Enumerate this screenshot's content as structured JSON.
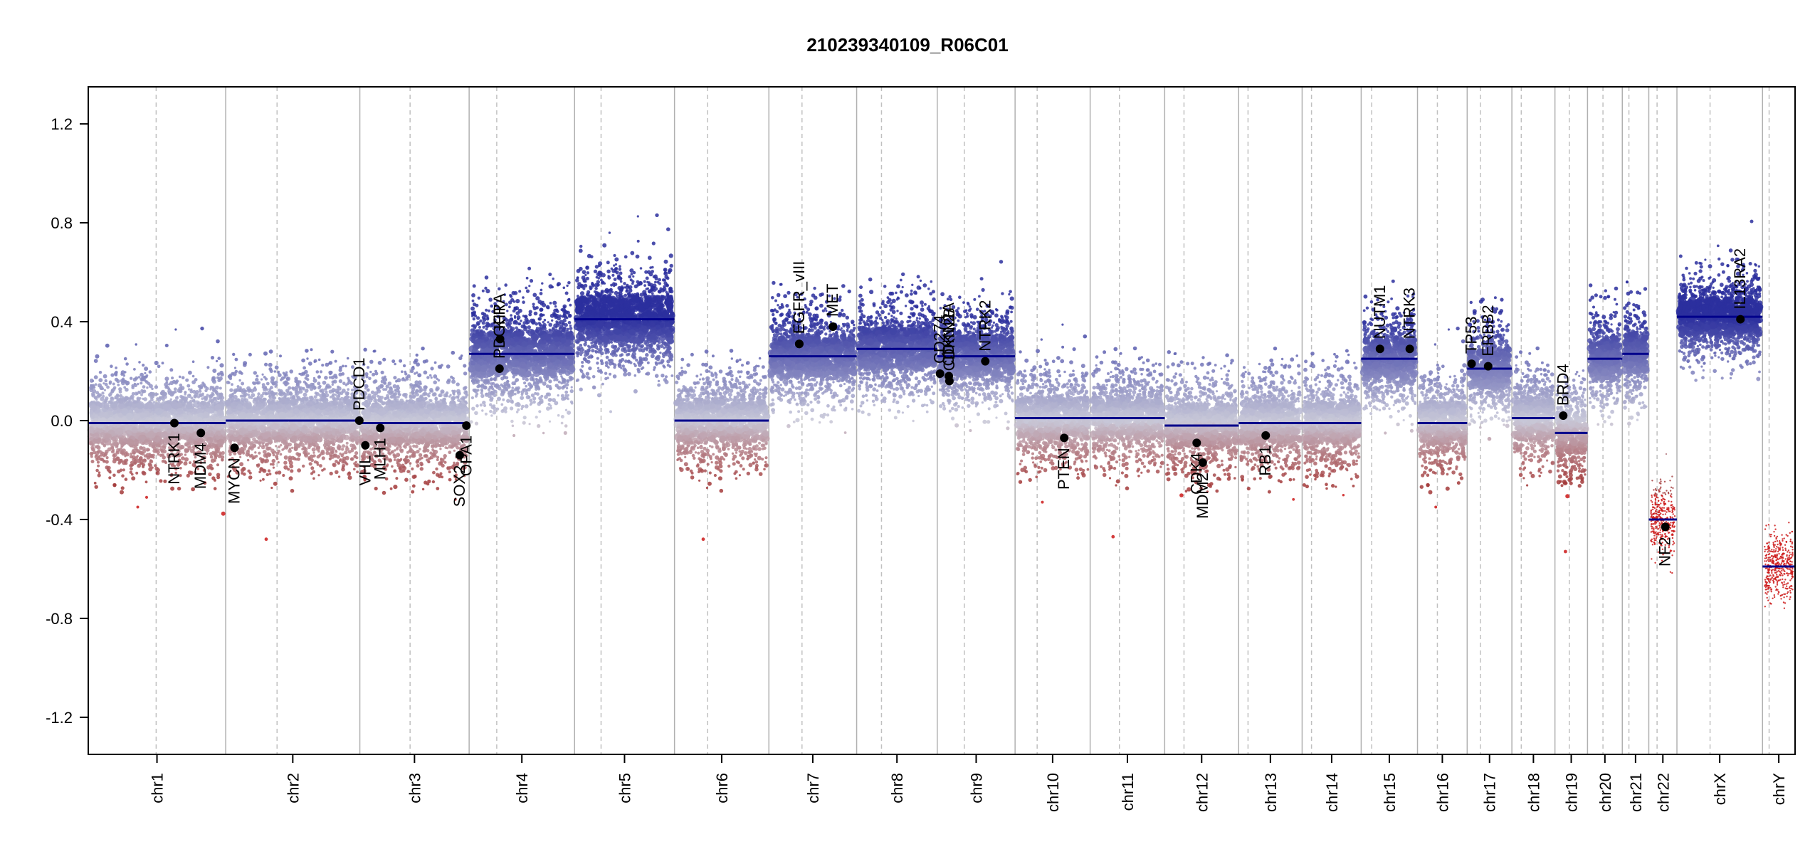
{
  "chart_data": {
    "type": "scatter",
    "title": "210239340109_R06C01",
    "xlabel": "",
    "ylabel": "",
    "ylim": [
      -1.35,
      1.35
    ],
    "grid": false,
    "y_ticks": [
      -1.2,
      -0.8,
      -0.4,
      0.0,
      0.4,
      0.8,
      1.2
    ],
    "y_tick_labels": [
      "-1.2",
      "-0.8",
      "-0.4",
      "0.0",
      "0.4",
      "0.8",
      "1.2"
    ],
    "colors": {
      "segment": "#00008b",
      "gain": "#2b2f9e",
      "neutral": "#c8c8d8",
      "loss": "#a33a3a",
      "deep_loss": "#cc1a1a",
      "chr_border": "#b0b0b0",
      "centromere": "#c0c0c0",
      "gene_point": "#000000"
    },
    "chromosomes": [
      {
        "name": "chr1",
        "label": "chr1",
        "size": 249,
        "centromere": 123,
        "segment_value": -0.01,
        "spread": 0.1
      },
      {
        "name": "chr2",
        "label": "chr2",
        "size": 243,
        "centromere": 93,
        "segment_value": 0.0,
        "spread": 0.1
      },
      {
        "name": "chr3",
        "label": "chr3",
        "size": 198,
        "centromere": 91,
        "segment_value": -0.01,
        "spread": 0.1
      },
      {
        "name": "chr4",
        "label": "chr4",
        "size": 191,
        "centromere": 50,
        "segment_value": 0.27,
        "spread": 0.11
      },
      {
        "name": "chr5",
        "label": "chr5",
        "size": 181,
        "centromere": 48,
        "segment_value": 0.41,
        "spread": 0.11
      },
      {
        "name": "chr6",
        "label": "chr6",
        "size": 171,
        "centromere": 60,
        "segment_value": 0.0,
        "spread": 0.1
      },
      {
        "name": "chr7",
        "label": "chr7",
        "size": 159,
        "centromere": 60,
        "segment_value": 0.26,
        "spread": 0.1
      },
      {
        "name": "chr8",
        "label": "chr8",
        "size": 146,
        "centromere": 45,
        "segment_value": 0.29,
        "spread": 0.1
      },
      {
        "name": "chr9",
        "label": "chr9",
        "size": 141,
        "centromere": 49,
        "segment_value": 0.26,
        "spread": 0.1
      },
      {
        "name": "chr10",
        "label": "chr10",
        "size": 136,
        "centromere": 40,
        "segment_value": 0.01,
        "spread": 0.1
      },
      {
        "name": "chr11",
        "label": "chr11",
        "size": 135,
        "centromere": 53,
        "segment_value": 0.01,
        "spread": 0.1
      },
      {
        "name": "chr12",
        "label": "chr12",
        "size": 134,
        "centromere": 35,
        "segment_value": -0.02,
        "spread": 0.1
      },
      {
        "name": "chr13",
        "label": "chr13",
        "size": 115,
        "centromere": 17,
        "segment_value": -0.01,
        "spread": 0.1
      },
      {
        "name": "chr14",
        "label": "chr14",
        "size": 107,
        "centromere": 17,
        "segment_value": -0.01,
        "spread": 0.1
      },
      {
        "name": "chr15",
        "label": "chr15",
        "size": 102,
        "centromere": 19,
        "segment_value": 0.25,
        "spread": 0.1
      },
      {
        "name": "chr16",
        "label": "chr16",
        "size": 90,
        "centromere": 36,
        "segment_value": -0.01,
        "spread": 0.1
      },
      {
        "name": "chr17",
        "label": "chr17",
        "size": 81,
        "centromere": 24,
        "segment_value": 0.21,
        "spread": 0.1
      },
      {
        "name": "chr18",
        "label": "chr18",
        "size": 78,
        "centromere": 17,
        "segment_value": 0.01,
        "spread": 0.1
      },
      {
        "name": "chr19",
        "label": "chr19",
        "size": 59,
        "centromere": 26,
        "segment_value": -0.05,
        "spread": 0.1
      },
      {
        "name": "chr20",
        "label": "chr20",
        "size": 63,
        "centromere": 28,
        "segment_value": 0.25,
        "spread": 0.1
      },
      {
        "name": "chr21",
        "label": "chr21",
        "size": 48,
        "centromere": 12,
        "segment_value": 0.27,
        "spread": 0.1
      },
      {
        "name": "chr22",
        "label": "chr22",
        "size": 51,
        "centromere": 15,
        "segment_value": -0.4,
        "spread": 0.1
      },
      {
        "name": "chrX",
        "label": "chrX",
        "size": 155,
        "centromere": 60,
        "segment_value": 0.42,
        "spread": 0.09
      },
      {
        "name": "chrY",
        "label": "chrY",
        "size": 59,
        "centromere": 12,
        "segment_value": -0.59,
        "spread": 0.1
      }
    ],
    "genes": [
      {
        "name": "NTRK1",
        "chrom": "chr1",
        "pos": 156,
        "value": -0.01,
        "label_side": "below"
      },
      {
        "name": "MDM4",
        "chrom": "chr1",
        "pos": 204,
        "value": -0.05,
        "label_side": "below"
      },
      {
        "name": "MYCN",
        "chrom": "chr2",
        "pos": 16,
        "value": -0.11,
        "label_side": "below"
      },
      {
        "name": "PDCD1",
        "chrom": "chr2",
        "pos": 242,
        "value": 0.0,
        "label_side": "above"
      },
      {
        "name": "VHL",
        "chrom": "chr3",
        "pos": 10,
        "value": -0.1,
        "label_side": "below"
      },
      {
        "name": "MLH1",
        "chrom": "chr3",
        "pos": 37,
        "value": -0.03,
        "label_side": "below"
      },
      {
        "name": "SOX2",
        "chrom": "chr3",
        "pos": 181,
        "value": -0.14,
        "label_side": "below"
      },
      {
        "name": "OPA1",
        "chrom": "chr3",
        "pos": 193,
        "value": -0.02,
        "label_side": "below"
      },
      {
        "name": "PDGFRA",
        "chrom": "chr4",
        "pos": 55,
        "value": 0.21,
        "label_side": "above"
      },
      {
        "name": "KIT",
        "chrom": "chr4",
        "pos": 56,
        "value": 0.33,
        "label_side": "above"
      },
      {
        "name": "EGFR_vIII",
        "chrom": "chr7",
        "pos": 55,
        "value": 0.31,
        "label_side": "above"
      },
      {
        "name": "EGFR",
        "chrom": "chr7",
        "pos": 55,
        "value": 0.31,
        "label_side": "above"
      },
      {
        "name": "MET",
        "chrom": "chr7",
        "pos": 116,
        "value": 0.38,
        "label_side": "above"
      },
      {
        "name": "CD274",
        "chrom": "chr9",
        "pos": 5,
        "value": 0.19,
        "label_side": "above"
      },
      {
        "name": "CDKN2A",
        "chrom": "chr9",
        "pos": 21,
        "value": 0.18,
        "label_side": "above"
      },
      {
        "name": "CDKN2B",
        "chrom": "chr9",
        "pos": 22,
        "value": 0.16,
        "label_side": "above"
      },
      {
        "name": "NTRK2",
        "chrom": "chr9",
        "pos": 87,
        "value": 0.24,
        "label_side": "above"
      },
      {
        "name": "PTEN",
        "chrom": "chr10",
        "pos": 89,
        "value": -0.07,
        "label_side": "below"
      },
      {
        "name": "CDK4",
        "chrom": "chr12",
        "pos": 58,
        "value": -0.09,
        "label_side": "below"
      },
      {
        "name": "MDM2",
        "chrom": "chr12",
        "pos": 69,
        "value": -0.17,
        "label_side": "below"
      },
      {
        "name": "RB1",
        "chrom": "chr13",
        "pos": 49,
        "value": -0.06,
        "label_side": "below"
      },
      {
        "name": "NUTM1",
        "chrom": "chr15",
        "pos": 34,
        "value": 0.29,
        "label_side": "above"
      },
      {
        "name": "NTRK3",
        "chrom": "chr15",
        "pos": 88,
        "value": 0.29,
        "label_side": "above"
      },
      {
        "name": "TP53",
        "chrom": "chr17",
        "pos": 8,
        "value": 0.23,
        "label_side": "above"
      },
      {
        "name": "ERBB2",
        "chrom": "chr17",
        "pos": 38,
        "value": 0.22,
        "label_side": "above"
      },
      {
        "name": "BRD4",
        "chrom": "chr19",
        "pos": 15,
        "value": 0.02,
        "label_side": "above"
      },
      {
        "name": "NF2",
        "chrom": "chr22",
        "pos": 30,
        "value": -0.43,
        "label_side": "below"
      },
      {
        "name": "IL13RA2",
        "chrom": "chrX",
        "pos": 115,
        "value": 0.41,
        "label_side": "above"
      }
    ]
  }
}
